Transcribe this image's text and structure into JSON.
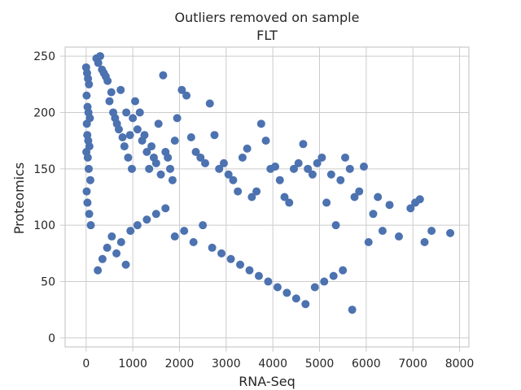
{
  "chart_data": {
    "type": "scatter",
    "title": "Outliers removed on sample",
    "subtitle": "FLT",
    "xlabel": "RNA-Seq",
    "ylabel": "Proteomics",
    "xlim": [
      -450,
      8200
    ],
    "ylim": [
      -8,
      258
    ],
    "x_ticks": [
      0,
      1000,
      2000,
      3000,
      4000,
      5000,
      6000,
      7000,
      8000
    ],
    "y_ticks": [
      0,
      50,
      100,
      150,
      200,
      250
    ],
    "grid": true,
    "legend": "none",
    "point_color": "#4c72b0",
    "series": [
      {
        "x": [
          0,
          20,
          40,
          60,
          10,
          30,
          50,
          80,
          15,
          25,
          45,
          70,
          5,
          35,
          55,
          90,
          12,
          28,
          65,
          100,
          220,
          260,
          300,
          340,
          380,
          420,
          460,
          500,
          540,
          580,
          620,
          660,
          700,
          740,
          780,
          820,
          860,
          900,
          940,
          980,
          1000,
          1050,
          1100,
          1150,
          1200,
          1250,
          1300,
          1350,
          1400,
          1450,
          1500,
          1550,
          1600,
          1650,
          1700,
          1750,
          1800,
          1850,
          1900,
          1950,
          2050,
          2150,
          2250,
          2350,
          2450,
          2550,
          2650,
          2750,
          2850,
          2950,
          3050,
          3150,
          3250,
          3350,
          3450,
          3550,
          3650,
          3750,
          3850,
          3950,
          4050,
          4150,
          4250,
          4350,
          4450,
          4550,
          4650,
          4750,
          4850,
          4950,
          5050,
          5150,
          5250,
          5350,
          5450,
          5550,
          5650,
          5750,
          5850,
          5950,
          6050,
          6150,
          6250,
          6350,
          6500,
          6700,
          6950,
          7050,
          7150,
          7250,
          7400,
          7800,
          250,
          350,
          450,
          550,
          650,
          750,
          850,
          950,
          1100,
          1300,
          1500,
          1700,
          1900,
          2100,
          2300,
          2500,
          2700,
          2900,
          3100,
          3300,
          3500,
          3700,
          3900,
          4100,
          4300,
          4500,
          4700,
          4900,
          5100,
          5300,
          5500,
          5700
        ],
        "y": [
          240,
          235,
          230,
          225,
          215,
          205,
          200,
          195,
          190,
          180,
          175,
          170,
          165,
          160,
          150,
          140,
          130,
          120,
          110,
          100,
          248,
          244,
          250,
          238,
          235,
          232,
          228,
          210,
          218,
          200,
          195,
          190,
          185,
          220,
          178,
          170,
          200,
          160,
          180,
          150,
          195,
          210,
          185,
          200,
          175,
          180,
          165,
          150,
          170,
          160,
          155,
          190,
          145,
          233,
          165,
          160,
          150,
          140,
          175,
          195,
          220,
          215,
          178,
          165,
          160,
          155,
          208,
          180,
          150,
          155,
          145,
          140,
          130,
          160,
          168,
          125,
          130,
          190,
          175,
          150,
          152,
          140,
          125,
          120,
          150,
          155,
          172,
          150,
          145,
          155,
          160,
          120,
          145,
          100,
          140,
          160,
          150,
          125,
          130,
          152,
          85,
          110,
          125,
          95,
          118,
          90,
          115,
          120,
          123,
          85,
          95,
          93,
          60,
          70,
          80,
          90,
          75,
          85,
          65,
          95,
          100,
          105,
          110,
          115,
          90,
          95,
          85,
          100,
          80,
          75,
          70,
          65,
          60,
          55,
          50,
          45,
          40,
          35,
          30,
          45,
          50,
          55,
          60,
          25
        ]
      }
    ]
  }
}
